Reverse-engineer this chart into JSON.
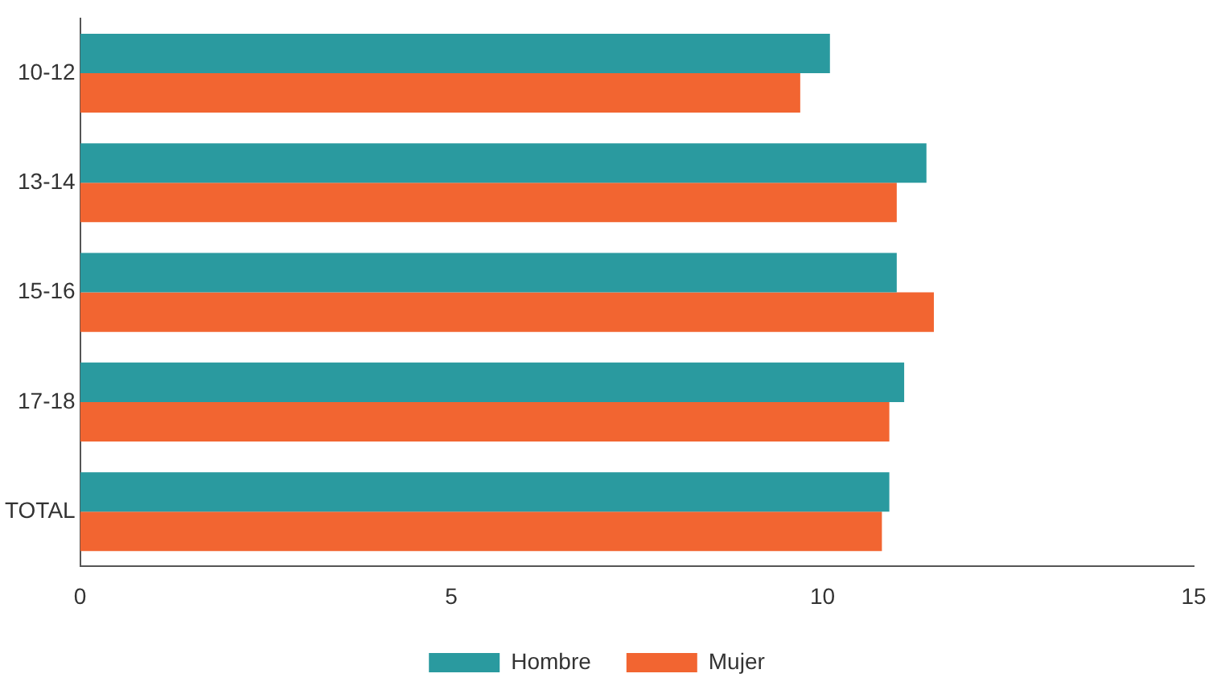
{
  "chart_data": {
    "type": "bar",
    "orientation": "horizontal",
    "categories": [
      "10-12",
      "13-14",
      "15-16",
      "17-18",
      "TOTAL"
    ],
    "series": [
      {
        "name": "Hombre",
        "color": "#2a9a9f",
        "values": [
          10.1,
          11.4,
          11.0,
          11.1,
          10.9
        ]
      },
      {
        "name": "Mujer",
        "color": "#f26531",
        "values": [
          9.7,
          11.0,
          11.5,
          10.9,
          10.8
        ]
      }
    ],
    "xlim": [
      0,
      15
    ],
    "xticks": [
      0,
      5,
      10,
      15
    ],
    "grid": false,
    "legend": "bottom"
  }
}
